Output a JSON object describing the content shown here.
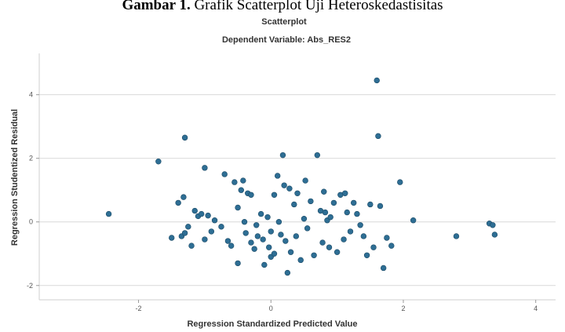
{
  "caption": {
    "prefix": "Gambar 1.",
    "text": "Grafik Scatterplot Uji Heteroskedastisitas"
  },
  "chart_data": {
    "type": "scatter",
    "title": "Scatterplot",
    "subtitle": "Dependent Variable: Abs_RES2",
    "xlabel": "Regression Standardized Predicted Value",
    "ylabel": "Regression Studentized Residual",
    "xlim": [
      -3.5,
      4.3
    ],
    "ylim": [
      -2.45,
      5.3
    ],
    "xticks": [
      -2,
      0,
      2,
      4
    ],
    "yticks": [
      -2,
      0,
      2,
      4
    ],
    "xtick_labels": [
      "-2",
      "0",
      "2",
      "4"
    ],
    "ytick_labels": [
      "-2",
      "0",
      "2",
      "4"
    ],
    "grid": "horizontal",
    "point_color": "#2e6e94",
    "points": [
      {
        "x": -2.45,
        "y": 0.25
      },
      {
        "x": -1.7,
        "y": 1.9
      },
      {
        "x": -1.3,
        "y": 2.65
      },
      {
        "x": -1.4,
        "y": 0.6
      },
      {
        "x": -1.32,
        "y": 0.78
      },
      {
        "x": -1.5,
        "y": -0.5
      },
      {
        "x": -1.35,
        "y": -0.45
      },
      {
        "x": -1.3,
        "y": -0.35
      },
      {
        "x": -1.25,
        "y": -0.15
      },
      {
        "x": -1.2,
        "y": -0.75
      },
      {
        "x": -1.15,
        "y": 0.35
      },
      {
        "x": -1.1,
        "y": 0.18
      },
      {
        "x": -1.05,
        "y": 0.25
      },
      {
        "x": -1.0,
        "y": 1.7
      },
      {
        "x": -0.95,
        "y": 0.2
      },
      {
        "x": -0.9,
        "y": -0.3
      },
      {
        "x": -0.85,
        "y": 0.05
      },
      {
        "x": -1.0,
        "y": -0.55
      },
      {
        "x": -0.75,
        "y": -0.15
      },
      {
        "x": -0.7,
        "y": 1.5
      },
      {
        "x": -0.65,
        "y": -0.6
      },
      {
        "x": -0.6,
        "y": -0.75
      },
      {
        "x": -0.55,
        "y": 1.25
      },
      {
        "x": -0.5,
        "y": 0.45
      },
      {
        "x": -0.5,
        "y": -1.3
      },
      {
        "x": -0.45,
        "y": 1.0
      },
      {
        "x": -0.42,
        "y": 1.3
      },
      {
        "x": -0.4,
        "y": 0.0
      },
      {
        "x": -0.38,
        "y": -0.35
      },
      {
        "x": -0.35,
        "y": 0.9
      },
      {
        "x": -0.3,
        "y": 0.85
      },
      {
        "x": -0.3,
        "y": -0.65
      },
      {
        "x": -0.25,
        "y": -0.85
      },
      {
        "x": -0.22,
        "y": -0.1
      },
      {
        "x": -0.2,
        "y": -0.45
      },
      {
        "x": -0.15,
        "y": 0.25
      },
      {
        "x": -0.12,
        "y": -0.55
      },
      {
        "x": -0.1,
        "y": -1.35
      },
      {
        "x": -0.05,
        "y": 0.15
      },
      {
        "x": -0.03,
        "y": -0.8
      },
      {
        "x": 0.0,
        "y": -1.1
      },
      {
        "x": 0.0,
        "y": -0.3
      },
      {
        "x": 0.05,
        "y": 0.85
      },
      {
        "x": 0.05,
        "y": -1.0
      },
      {
        "x": 0.1,
        "y": 1.45
      },
      {
        "x": 0.12,
        "y": 0.0
      },
      {
        "x": 0.15,
        "y": -0.4
      },
      {
        "x": 0.18,
        "y": 2.1
      },
      {
        "x": 0.2,
        "y": 1.15
      },
      {
        "x": 0.22,
        "y": -0.6
      },
      {
        "x": 0.25,
        "y": -1.6
      },
      {
        "x": 0.28,
        "y": 1.05
      },
      {
        "x": 0.3,
        "y": -0.95
      },
      {
        "x": 0.35,
        "y": 0.55
      },
      {
        "x": 0.38,
        "y": -0.45
      },
      {
        "x": 0.4,
        "y": 0.9
      },
      {
        "x": 0.45,
        "y": -1.2
      },
      {
        "x": 0.5,
        "y": 0.1
      },
      {
        "x": 0.52,
        "y": 1.3
      },
      {
        "x": 0.55,
        "y": -0.2
      },
      {
        "x": 0.6,
        "y": 0.65
      },
      {
        "x": 0.65,
        "y": -1.05
      },
      {
        "x": 0.7,
        "y": 2.1
      },
      {
        "x": 0.75,
        "y": 0.35
      },
      {
        "x": 0.78,
        "y": -0.65
      },
      {
        "x": 0.8,
        "y": 0.95
      },
      {
        "x": 0.82,
        "y": 0.3
      },
      {
        "x": 0.85,
        "y": 0.05
      },
      {
        "x": 0.88,
        "y": -0.8
      },
      {
        "x": 0.9,
        "y": 0.15
      },
      {
        "x": 0.95,
        "y": 0.6
      },
      {
        "x": 1.0,
        "y": -0.95
      },
      {
        "x": 1.05,
        "y": 0.85
      },
      {
        "x": 1.1,
        "y": -0.55
      },
      {
        "x": 1.12,
        "y": 0.9
      },
      {
        "x": 1.15,
        "y": 0.3
      },
      {
        "x": 1.2,
        "y": -0.3
      },
      {
        "x": 1.25,
        "y": 0.6
      },
      {
        "x": 1.3,
        "y": 0.25
      },
      {
        "x": 1.35,
        "y": -0.1
      },
      {
        "x": 1.4,
        "y": -0.45
      },
      {
        "x": 1.45,
        "y": -1.05
      },
      {
        "x": 1.5,
        "y": 0.55
      },
      {
        "x": 1.55,
        "y": -0.8
      },
      {
        "x": 1.6,
        "y": 4.45
      },
      {
        "x": 1.62,
        "y": 2.7
      },
      {
        "x": 1.65,
        "y": 0.5
      },
      {
        "x": 1.7,
        "y": -1.45
      },
      {
        "x": 1.75,
        "y": -0.5
      },
      {
        "x": 1.82,
        "y": -0.75
      },
      {
        "x": 1.95,
        "y": 1.25
      },
      {
        "x": 2.15,
        "y": 0.05
      },
      {
        "x": 2.8,
        "y": -0.45
      },
      {
        "x": 3.3,
        "y": -0.05
      },
      {
        "x": 3.35,
        "y": -0.1
      },
      {
        "x": 3.38,
        "y": -0.4
      }
    ]
  }
}
